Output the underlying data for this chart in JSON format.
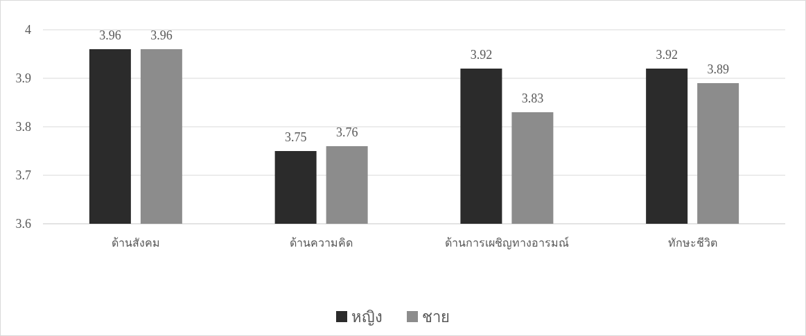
{
  "chart_data": {
    "type": "bar",
    "categories": [
      "ด้านสังคม",
      "ด้านความคิด",
      "ด้านการเผชิญทางอารมณ์",
      "ทักษะชีวิต"
    ],
    "series": [
      {
        "name": "หญิง",
        "color": "#2b2b2b",
        "values": [
          3.96,
          3.75,
          3.92,
          3.92
        ]
      },
      {
        "name": "ชาย",
        "color": "#8c8c8c",
        "values": [
          3.96,
          3.76,
          3.83,
          3.89
        ]
      }
    ],
    "ylim": [
      3.6,
      4
    ],
    "yticks": [
      3.6,
      3.7,
      3.8,
      3.9,
      4
    ],
    "grid": "y",
    "legend": "bottom",
    "data_labels": true
  }
}
